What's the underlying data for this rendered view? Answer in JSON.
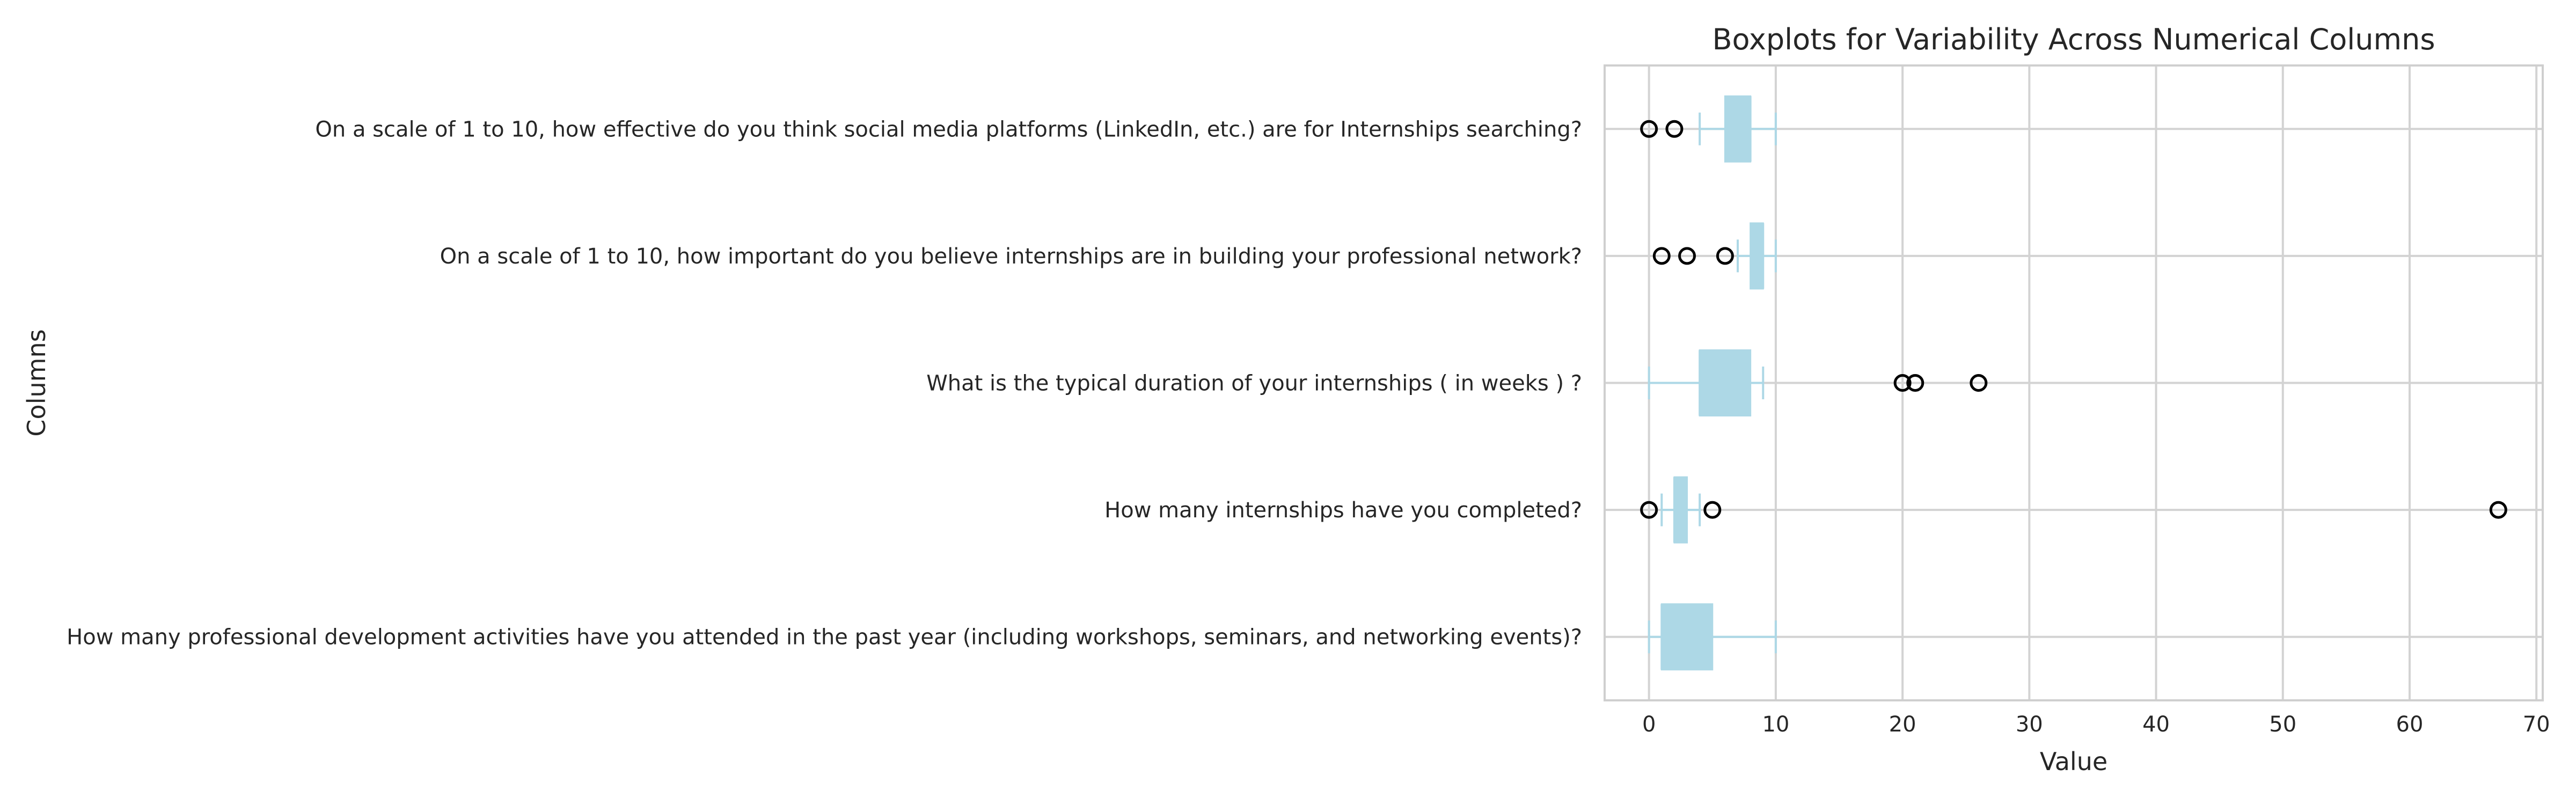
{
  "chart_data": {
    "type": "boxplot",
    "orientation": "horizontal",
    "title": "Boxplots for Variability Across Numerical Columns",
    "xlabel": "Value",
    "ylabel": "Columns",
    "xlim": [
      -3.5,
      70.5
    ],
    "xticks": [
      0,
      10,
      20,
      30,
      40,
      50,
      60,
      70
    ],
    "xtick_labels": [
      "0",
      "10",
      "20",
      "30",
      "40",
      "50",
      "60",
      "70"
    ],
    "grid": true,
    "box_color": "#add8e6",
    "outlier_color": "#000000",
    "categories": [
      "How many professional development activities have you attended in the past year (including workshops, seminars, and networking events)?",
      "How many internships have you completed?",
      "What is the typical duration of your internships ( in weeks ) ?",
      "On a scale of 1 to 10, how important do you believe internships are in building your professional network?",
      "On a scale of 1 to 10, how effective do you think social media platforms (LinkedIn, etc.) are for Internships  searching?"
    ],
    "boxes": [
      {
        "whislo": 0,
        "q1": 1,
        "med": 1,
        "q3": 5,
        "whishi": 10,
        "fliers": []
      },
      {
        "whislo": 1,
        "q1": 2,
        "med": 2,
        "q3": 3,
        "whishi": 4,
        "fliers": [
          0,
          5,
          67
        ]
      },
      {
        "whislo": 0,
        "q1": 4,
        "med": 4,
        "q3": 8,
        "whishi": 9,
        "fliers": [
          20,
          21,
          26
        ]
      },
      {
        "whislo": 7,
        "q1": 8,
        "med": 9,
        "q3": 9,
        "whishi": 10,
        "fliers": [
          1,
          3,
          6
        ]
      },
      {
        "whislo": 4,
        "q1": 6,
        "med": 8,
        "q3": 8,
        "whishi": 10,
        "fliers": [
          0,
          2
        ]
      }
    ]
  }
}
